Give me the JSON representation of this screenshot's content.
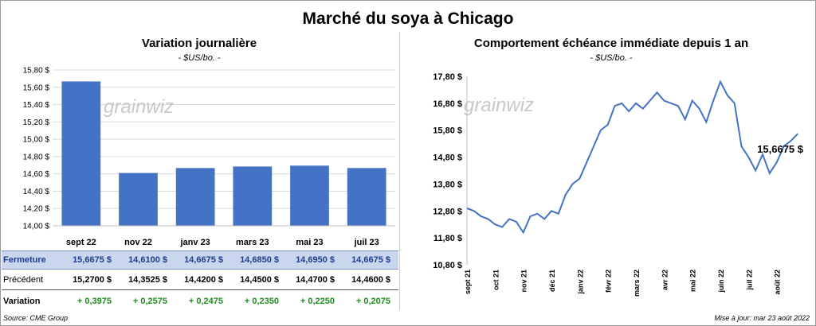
{
  "main_title": "Marché du soya à Chicago",
  "left_chart": {
    "title": "Variation journalière",
    "unit": "- $US/bo. -"
  },
  "right_chart": {
    "title": "Comportement échéance immédiate depuis 1 an",
    "unit": "- $US/bo. -",
    "last_value_label": "15,6675 $"
  },
  "watermark": "grainwiz",
  "table": {
    "rows": [
      {
        "label": "Fermeture",
        "values": [
          "15,6675  $",
          "14,6100  $",
          "14,6675  $",
          "14,6850  $",
          "14,6950  $",
          "14,6675  $"
        ]
      },
      {
        "label": "Précédent",
        "values": [
          "15,2700  $",
          "14,3525  $",
          "14,4200  $",
          "14,4500  $",
          "14,4700  $",
          "14,4600  $"
        ]
      },
      {
        "label": "Variation",
        "values": [
          "+ 0,3975",
          "+ 0,2575",
          "+ 0,2475",
          "+ 0,2350",
          "+ 0,2250",
          "+ 0,2075"
        ]
      }
    ]
  },
  "footer": {
    "source": "Source: CME Group",
    "updated": "Mise à jour: mar 23 août 2022"
  },
  "colors": {
    "bar": "#4472c4",
    "line": "#4472c4",
    "positive": "#1f8a1f",
    "fermeture_bg": "#c9d6ee"
  },
  "chart_data": [
    {
      "type": "bar",
      "title": "Variation journalière",
      "ylabel": "- $US/bo. -",
      "categories": [
        "sept 22",
        "nov 22",
        "janv 23",
        "mars 23",
        "mai 23",
        "juil 23"
      ],
      "values": [
        15.6675,
        14.61,
        14.6675,
        14.685,
        14.695,
        14.6675
      ],
      "ylim": [
        14.0,
        15.8
      ],
      "yticks": [
        "14,00 $",
        "14,20 $",
        "14,40 $",
        "14,60 $",
        "14,80 $",
        "15,00 $",
        "15,20 $",
        "15,40 $",
        "15,60 $",
        "15,80 $"
      ],
      "grid": true
    },
    {
      "type": "line",
      "title": "Comportement échéance immédiate depuis 1 an",
      "ylabel": "- $US/bo. -",
      "ylim": [
        10.8,
        17.8
      ],
      "yticks": [
        "10,80 $",
        "11,80 $",
        "12,80 $",
        "13,80 $",
        "14,80 $",
        "15,80 $",
        "16,80 $",
        "17,80 $"
      ],
      "xticks": [
        "sept 21",
        "oct 21",
        "nov 21",
        "déc 21",
        "janv 22",
        "févr 22",
        "mars 22",
        "avr 22",
        "mai 22",
        "juin 22",
        "juil 22",
        "août 22"
      ],
      "x_range": [
        0,
        12
      ],
      "x": [
        0,
        0.25,
        0.5,
        0.75,
        1.0,
        1.25,
        1.5,
        1.75,
        2.0,
        2.25,
        2.5,
        2.75,
        3.0,
        3.25,
        3.5,
        3.75,
        4.0,
        4.25,
        4.5,
        4.75,
        5.0,
        5.25,
        5.5,
        5.75,
        6.0,
        6.25,
        6.5,
        6.75,
        7.0,
        7.25,
        7.5,
        7.75,
        8.0,
        8.25,
        8.5,
        8.75,
        9.0,
        9.25,
        9.5,
        9.75,
        10.0,
        10.25,
        10.5,
        10.75,
        11.0,
        11.25,
        11.5,
        11.75
      ],
      "y": [
        12.9,
        12.8,
        12.6,
        12.5,
        12.3,
        12.2,
        12.5,
        12.4,
        12.0,
        12.6,
        12.7,
        12.5,
        12.8,
        12.7,
        13.4,
        13.8,
        14.0,
        14.6,
        15.2,
        15.8,
        16.0,
        16.7,
        16.8,
        16.5,
        16.8,
        16.6,
        16.9,
        17.2,
        16.9,
        16.8,
        16.7,
        16.2,
        16.9,
        16.6,
        16.1,
        16.9,
        17.6,
        17.1,
        16.8,
        15.2,
        14.8,
        14.3,
        14.9,
        14.2,
        14.6,
        15.2,
        15.4,
        15.6675
      ],
      "grid": false
    }
  ]
}
